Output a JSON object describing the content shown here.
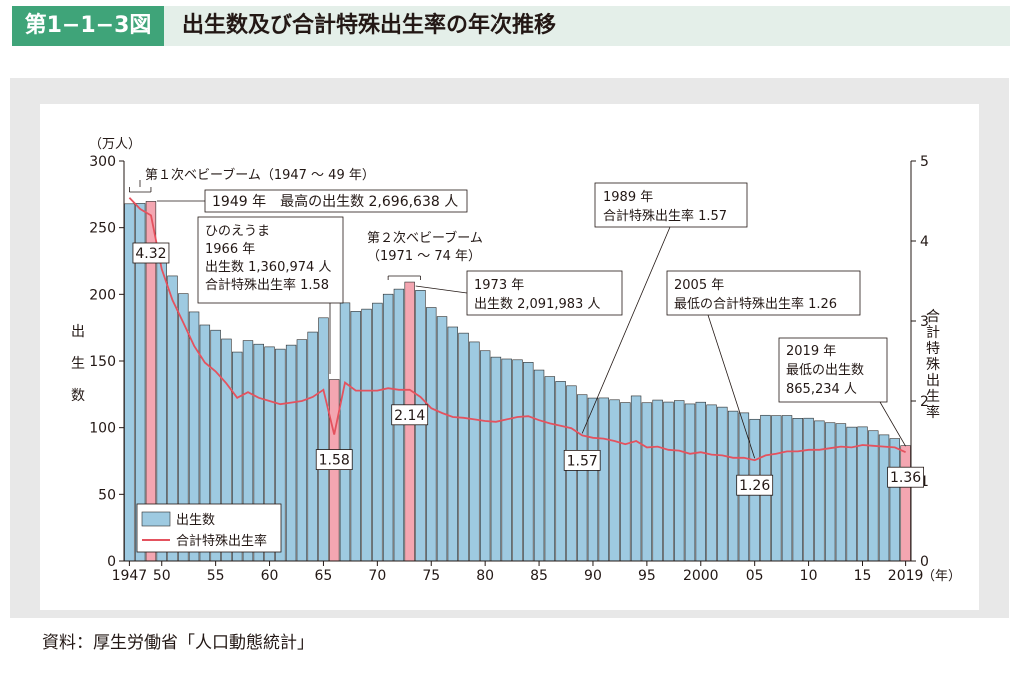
{
  "header": {
    "figure_label": "第1−1−3図",
    "title": "出生数及び合計特殊出生率の年次推移"
  },
  "source": "資料：厚生労働省「人口動態統計」",
  "colors": {
    "bar": "#9ecae1",
    "bar_highlight": "#f4a6b1",
    "line": "#e4525e",
    "accent_green": "#3fa479"
  },
  "chart_data": {
    "type": "bar",
    "years": [
      1947,
      1948,
      1949,
      1950,
      1951,
      1952,
      1953,
      1954,
      1955,
      1956,
      1957,
      1958,
      1959,
      1960,
      1961,
      1962,
      1963,
      1964,
      1965,
      1966,
      1967,
      1968,
      1969,
      1970,
      1971,
      1972,
      1973,
      1974,
      1975,
      1976,
      1977,
      1978,
      1979,
      1980,
      1981,
      1982,
      1983,
      1984,
      1985,
      1986,
      1987,
      1988,
      1989,
      1990,
      1991,
      1992,
      1993,
      1994,
      1995,
      1996,
      1997,
      1998,
      1999,
      2000,
      2001,
      2002,
      2003,
      2004,
      2005,
      2006,
      2007,
      2008,
      2009,
      2010,
      2011,
      2012,
      2013,
      2014,
      2015,
      2016,
      2017,
      2018,
      2019
    ],
    "series": [
      {
        "name": "出生数",
        "unit": "万人",
        "values": [
          267.9,
          268.2,
          269.7,
          233.8,
          213.8,
          200.5,
          186.8,
          177.0,
          173.1,
          166.5,
          156.7,
          165.3,
          162.6,
          160.6,
          158.9,
          161.9,
          166.0,
          171.7,
          182.4,
          136.1,
          193.6,
          187.2,
          188.9,
          193.4,
          200.1,
          203.9,
          209.2,
          203.0,
          190.1,
          183.3,
          175.5,
          170.9,
          164.3,
          157.7,
          152.9,
          151.5,
          150.9,
          149.0,
          143.2,
          138.3,
          134.7,
          131.4,
          124.7,
          122.2,
          122.3,
          120.9,
          118.8,
          123.8,
          118.7,
          120.7,
          119.2,
          120.3,
          117.8,
          119.1,
          117.1,
          115.4,
          112.4,
          111.1,
          106.3,
          109.3,
          109.0,
          109.1,
          107.0,
          107.1,
          105.1,
          103.7,
          103.0,
          100.4,
          100.6,
          97.7,
          94.6,
          91.8,
          86.5
        ]
      },
      {
        "name": "合計特殊出生率",
        "values": [
          4.54,
          4.4,
          4.32,
          3.65,
          3.26,
          2.98,
          2.69,
          2.48,
          2.37,
          2.22,
          2.04,
          2.11,
          2.04,
          2.0,
          1.96,
          1.98,
          2.0,
          2.05,
          2.14,
          1.58,
          2.23,
          2.13,
          2.13,
          2.13,
          2.16,
          2.14,
          2.14,
          2.05,
          1.91,
          1.85,
          1.8,
          1.79,
          1.77,
          1.75,
          1.74,
          1.77,
          1.8,
          1.81,
          1.76,
          1.72,
          1.69,
          1.66,
          1.57,
          1.54,
          1.53,
          1.5,
          1.46,
          1.5,
          1.42,
          1.43,
          1.39,
          1.38,
          1.34,
          1.36,
          1.33,
          1.32,
          1.29,
          1.29,
          1.26,
          1.32,
          1.34,
          1.37,
          1.37,
          1.39,
          1.39,
          1.41,
          1.43,
          1.42,
          1.45,
          1.44,
          1.43,
          1.42,
          1.36
        ]
      }
    ],
    "highlight_years": [
      1949,
      1966,
      1973,
      2019
    ],
    "y_left": {
      "label_unit": "（万人）",
      "label": "出生数",
      "min": 0,
      "max": 300,
      "ticks": [
        "0",
        "50",
        "100",
        "150",
        "200",
        "250",
        "300"
      ]
    },
    "y_right": {
      "label": "合計特殊出生率",
      "min": 0,
      "max": 5,
      "ticks": [
        "0",
        "1",
        "2",
        "3",
        "4",
        "5"
      ]
    },
    "x_ticks": [
      {
        "year": 1947,
        "label": "1947"
      },
      {
        "year": 1950,
        "label": "50"
      },
      {
        "year": 1955,
        "label": "55"
      },
      {
        "year": 1960,
        "label": "60"
      },
      {
        "year": 1965,
        "label": "65"
      },
      {
        "year": 1970,
        "label": "70"
      },
      {
        "year": 1975,
        "label": "75"
      },
      {
        "year": 1980,
        "label": "80"
      },
      {
        "year": 1985,
        "label": "85"
      },
      {
        "year": 1990,
        "label": "90"
      },
      {
        "year": 1995,
        "label": "95"
      },
      {
        "year": 2000,
        "label": "2000"
      },
      {
        "year": 2005,
        "label": "05"
      },
      {
        "year": 2010,
        "label": "10"
      },
      {
        "year": 2015,
        "label": "15"
      },
      {
        "year": 2019,
        "label": "2019"
      }
    ],
    "x_unit": "（年）",
    "legend": {
      "placement": "bottom-left",
      "items": [
        "出生数",
        "合計特殊出生率"
      ]
    },
    "rate_labels": [
      {
        "year": 1949,
        "text": "4.32"
      },
      {
        "year": 1966,
        "text": "1.58"
      },
      {
        "year": 1973,
        "text": "2.14"
      },
      {
        "year": 1989,
        "text": "1.57"
      },
      {
        "year": 2005,
        "text": "1.26"
      },
      {
        "year": 2019,
        "text": "1.36"
      }
    ],
    "annotations": {
      "baby_boom_1": "第１次ベビーブーム（1947 〜 49 年）",
      "peak_1949": "1949 年　最高の出生数 2,696,638 人",
      "hinoeuma": [
        "ひのえうま",
        "1966 年",
        "出生数 1,360,974 人",
        "合計特殊出生率 1.58"
      ],
      "baby_boom_2": [
        "第２次ベビーブーム",
        "（1971 〜 74 年）"
      ],
      "y1973": [
        "1973 年",
        "出生数 2,091,983 人"
      ],
      "y1989": [
        "1989 年",
        "合計特殊出生率 1.57"
      ],
      "y2005": [
        "2005 年",
        "最低の合計特殊出生率 1.26"
      ],
      "y2019": [
        "2019 年",
        "最低の出生数",
        "865,234 人"
      ]
    }
  }
}
